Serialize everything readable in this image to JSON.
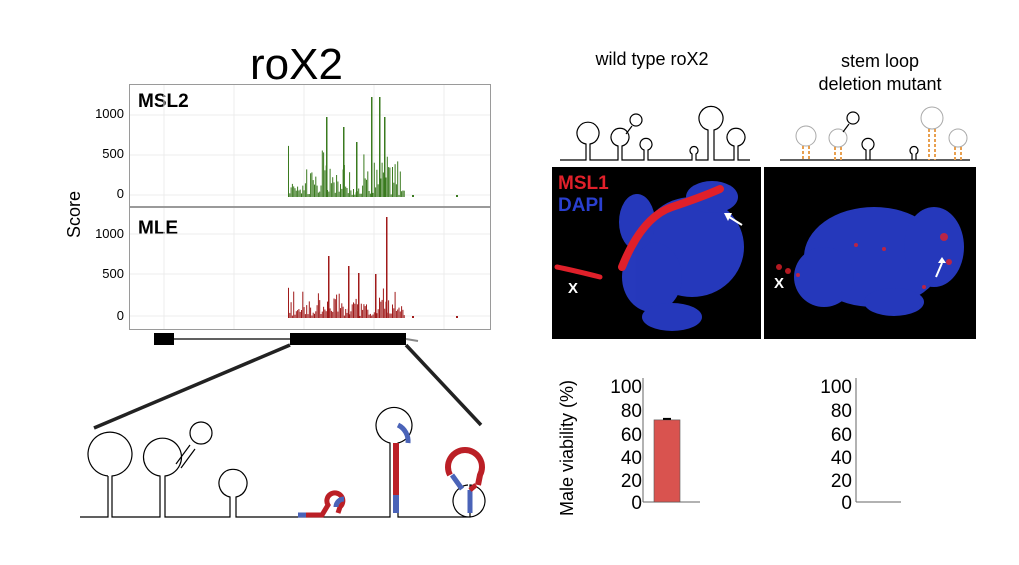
{
  "title": "roX2",
  "left_panel": {
    "y_axis_label": "Score",
    "tracks": [
      {
        "label": "MSL2",
        "color": "#3a7a1f",
        "ticks": [
          "1000",
          "500",
          "0"
        ]
      },
      {
        "label": "MLE",
        "color": "#a01a1a",
        "ticks": [
          "1000",
          "500",
          "0"
        ]
      }
    ]
  },
  "columns": {
    "wild_type": "wild type roX2",
    "mutant_line1": "stem loop",
    "mutant_line2": "deletion mutant"
  },
  "microscopy": {
    "stain1": "MSL1",
    "stain1_color": "#e0202a",
    "stain2": "DAPI",
    "stain2_color": "#2a3fd0",
    "x_marker": "X"
  },
  "chart_data": [
    {
      "type": "bar",
      "title": "",
      "ylabel": "Male viability (%)",
      "categories": [
        "wild type roX2"
      ],
      "values": [
        72
      ],
      "error": [
        1
      ],
      "ylim": [
        0,
        100
      ],
      "yticks": [
        "100",
        "80",
        "60",
        "40",
        "20",
        "0"
      ],
      "bar_color": "#d9534f"
    },
    {
      "type": "bar",
      "title": "",
      "ylabel": "",
      "categories": [
        "stem loop deletion mutant"
      ],
      "values": [
        0
      ],
      "ylim": [
        0,
        100
      ],
      "yticks": [
        "100",
        "80",
        "60",
        "40",
        "20",
        "0"
      ],
      "bar_color": "#d9534f"
    }
  ]
}
